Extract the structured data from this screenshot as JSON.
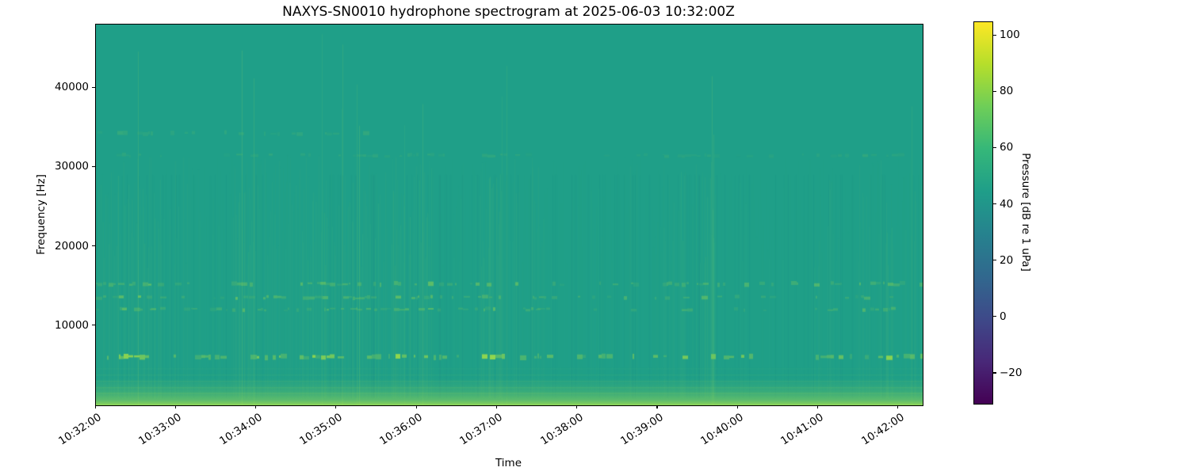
{
  "chart_data": {
    "type": "heatmap",
    "subtype": "spectrogram",
    "title": "NAXYS-SN0010 hydrophone spectrogram at 2025-06-03 10:32:00Z",
    "xlabel": "Time",
    "ylabel": "Frequency [Hz]",
    "grid": false,
    "freq_range_hz": [
      0,
      48000
    ],
    "time_range_s": [
      0,
      618
    ],
    "x_ticks": [
      {
        "label": "10:32:00",
        "t": 0
      },
      {
        "label": "10:33:00",
        "t": 60
      },
      {
        "label": "10:34:00",
        "t": 120
      },
      {
        "label": "10:35:00",
        "t": 180
      },
      {
        "label": "10:36:00",
        "t": 240
      },
      {
        "label": "10:37:00",
        "t": 300
      },
      {
        "label": "10:38:00",
        "t": 360
      },
      {
        "label": "10:39:00",
        "t": 420
      },
      {
        "label": "10:40:00",
        "t": 480
      },
      {
        "label": "10:41:00",
        "t": 540
      },
      {
        "label": "10:42:00",
        "t": 600
      }
    ],
    "y_ticks": [
      {
        "label": "10000",
        "f": 10000
      },
      {
        "label": "20000",
        "f": 20000
      },
      {
        "label": "30000",
        "f": 30000
      },
      {
        "label": "40000",
        "f": 40000
      }
    ],
    "colorbar": {
      "label": "Pressure [dB re 1 uPa]",
      "ticks": [
        100,
        80,
        60,
        40,
        20,
        0,
        -20
      ],
      "vmin": -30.7,
      "vmax": 104.8,
      "colormap": "viridis",
      "viridis_stops": [
        "#440154",
        "#482878",
        "#3e4989",
        "#31688e",
        "#26828e",
        "#1f9e89",
        "#35b779",
        "#6ece58",
        "#b5de2b",
        "#fde725"
      ]
    },
    "background_level_db": 48,
    "bands": [
      {
        "freq_hz": 6100,
        "strength": 0.85,
        "density": 0.5,
        "thickness_hz": 480,
        "x_coverage": [
          0,
          1
        ]
      },
      {
        "freq_hz": 12100,
        "strength": 0.38,
        "density": 0.45,
        "thickness_hz": 330,
        "x_coverage": [
          0,
          1
        ]
      },
      {
        "freq_hz": 13600,
        "strength": 0.42,
        "density": 0.48,
        "thickness_hz": 330,
        "x_coverage": [
          0,
          1
        ]
      },
      {
        "freq_hz": 15300,
        "strength": 0.48,
        "density": 0.52,
        "thickness_hz": 400,
        "x_coverage": [
          0,
          1
        ]
      },
      {
        "freq_hz": 31500,
        "strength": 0.14,
        "density": 0.45,
        "thickness_hz": 350,
        "x_coverage": [
          0,
          1
        ]
      },
      {
        "freq_hz": 34300,
        "strength": 0.17,
        "density": 0.45,
        "thickness_hz": 420,
        "x_coverage": [
          0,
          0.33
        ]
      }
    ],
    "low_band": {
      "cutoff_hz": 3400,
      "peak_alpha": 0.8
    },
    "faint_lines_hz": [
      4700,
      3900,
      3100,
      2300,
      1600
    ],
    "column_noise": {
      "density": 0.7,
      "max_alpha": 0.09,
      "click_density": 0.05,
      "click_alpha": 0.2,
      "fmin_hz": 900,
      "fmax_hz": 31500
    },
    "colors": {
      "base": "#1f9f88",
      "bright": "#98d74a",
      "axis": "#000000",
      "figure_background": "#ffffff"
    }
  }
}
